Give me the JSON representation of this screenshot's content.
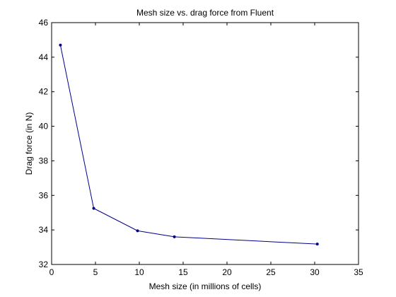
{
  "chart_data": {
    "type": "line",
    "title": "Mesh size vs. drag force from Fluent",
    "xlabel": "Mesh size (in millions of cells)",
    "ylabel": "Drag force (in N)",
    "xlim": [
      0,
      35
    ],
    "ylim": [
      32,
      46
    ],
    "xticks": [
      0,
      5,
      10,
      15,
      20,
      25,
      30,
      35
    ],
    "yticks": [
      32,
      34,
      36,
      38,
      40,
      42,
      44,
      46
    ],
    "grid": false,
    "series": [
      {
        "x": [
          1.0,
          4.8,
          9.8,
          14.0,
          30.3
        ],
        "y": [
          44.7,
          35.25,
          33.95,
          33.6,
          33.18
        ],
        "color": "#00008b",
        "marker": "dot"
      }
    ]
  }
}
